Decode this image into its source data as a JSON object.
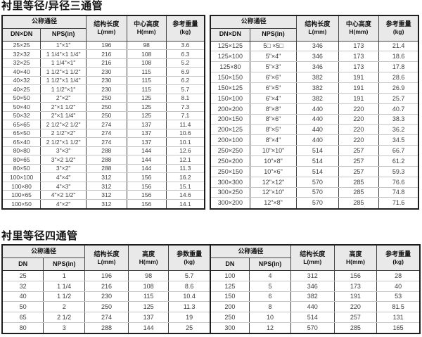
{
  "titles": {
    "tee": "衬里等径/异径三通管",
    "cross": "衬里等径四通管"
  },
  "tee_left": {
    "header": {
      "bore_group": "公称通径",
      "dn": "DN×DN",
      "nps": "NPS(in)",
      "length": "结构长度",
      "length_unit": "L(mm)",
      "height": "中心高度",
      "height_unit": "H(mm)",
      "weight": "参考重量",
      "weight_unit": "(kg)"
    },
    "rows": [
      [
        "25×25",
        "1\"×1\"",
        "196",
        "98",
        "3.6"
      ],
      [
        "32×32",
        "1 1/4\"×1 1/4\"",
        "216",
        "108",
        "6.3"
      ],
      [
        "32×25",
        "1 1/4\"×1\"",
        "216",
        "108",
        "5.2"
      ],
      [
        "40×40",
        "1 1/2\"×1 1/2\"",
        "230",
        "115",
        "6.9"
      ],
      [
        "40×32",
        "1 1/2\"×1 1/4\"",
        "230",
        "115",
        "6.2"
      ],
      [
        "40×25",
        "1 1/2\"×1\"",
        "230",
        "115",
        "5.7"
      ],
      [
        "50×50",
        "2\"×2\"",
        "250",
        "125",
        "8.1"
      ],
      [
        "50×40",
        "2\"×1 1/2\"",
        "250",
        "125",
        "7.3"
      ],
      [
        "50×32",
        "2\"×1 1/4\"",
        "250",
        "125",
        "7.1"
      ],
      [
        "65×65",
        "2 1/2\"×2 1/2\"",
        "274",
        "137",
        "11.4"
      ],
      [
        "65×50",
        "2 1/2\"×2\"",
        "274",
        "137",
        "10.6"
      ],
      [
        "65×40",
        "2 1/2\"×1 1/2\"",
        "274",
        "137",
        "10.1"
      ],
      [
        "80×80",
        "3\"×3\"",
        "288",
        "144",
        "12.6"
      ],
      [
        "80×65",
        "3\"×2 1/2\"",
        "288",
        "144",
        "12.1"
      ],
      [
        "80×50",
        "3\"×2\"",
        "288",
        "144",
        "11.3"
      ],
      [
        "100×100",
        "4\"×4\"",
        "312",
        "156",
        "16.2"
      ],
      [
        "100×80",
        "4\"×3\"",
        "312",
        "156",
        "15.1"
      ],
      [
        "100×65",
        "4\"×2 1/2\"",
        "312",
        "156",
        "14.6"
      ],
      [
        "100×50",
        "4\"×2\"",
        "312",
        "156",
        "14.1"
      ]
    ]
  },
  "tee_right": {
    "header": {
      "bore_group": "公称通径",
      "dn": "DN×DN",
      "nps": "NPS(in)",
      "length": "结构长度",
      "length_unit": "L(mm)",
      "height": "中心高度",
      "height_unit": "H(mm)",
      "weight": "参考重量",
      "weight_unit": "(kg)"
    },
    "rows": [
      [
        "125×125",
        "5□ ×5□",
        "346",
        "173",
        "21.4"
      ],
      [
        "125×100",
        "5\"×4\"",
        "346",
        "173",
        "18.6"
      ],
      [
        "125×80",
        "5\"×3\"",
        "346",
        "173",
        "17.8"
      ],
      [
        "150×150",
        "6\"×6\"",
        "382",
        "191",
        "28.6"
      ],
      [
        "150×125",
        "6\"×5\"",
        "382",
        "191",
        "26.9"
      ],
      [
        "150×100",
        "6\"×4\"",
        "382",
        "191",
        "25.7"
      ],
      [
        "200×200",
        "8\"×8\"",
        "440",
        "220",
        "40.7"
      ],
      [
        "200×150",
        "8\"×6\"",
        "440",
        "220",
        "38.3"
      ],
      [
        "200×125",
        "8\"×5\"",
        "440",
        "220",
        "36.2"
      ],
      [
        "200×100",
        "8\"×4\"",
        "440",
        "220",
        "34.5"
      ],
      [
        "250×250",
        "10\"×10\"",
        "514",
        "257",
        "66.7"
      ],
      [
        "250×200",
        "10\"×8\"",
        "514",
        "257",
        "61.2"
      ],
      [
        "250×150",
        "10\"×6\"",
        "514",
        "257",
        "59.3"
      ],
      [
        "300×300",
        "12\"×12\"",
        "570",
        "285",
        "76.6"
      ],
      [
        "300×250",
        "12\"×10\"",
        "570",
        "285",
        "74.8"
      ],
      [
        "300×200",
        "12\"×8\"",
        "570",
        "285",
        "71.6"
      ]
    ]
  },
  "cross": {
    "header_left": {
      "bore_group": "公称通径",
      "dn": "DN",
      "nps": "NPS(in)",
      "length": "结构长度",
      "length_unit": "L(mm)",
      "height": "高度",
      "height_unit": "H(mm)",
      "weight": "参数重量",
      "weight_unit": "(kg)"
    },
    "header_right": {
      "bore_group": "公称通径",
      "dn": "DN",
      "nps": "NPS(in)",
      "length": "结构长度",
      "length_unit": "L(mm)",
      "height": "高度",
      "height_unit": "H(mm)",
      "weight": "参考重量",
      "weight_unit": "(kg)"
    },
    "rows": [
      [
        "25",
        "1",
        "196",
        "98",
        "5.7",
        "100",
        "4",
        "312",
        "156",
        "28"
      ],
      [
        "32",
        "1 1/4",
        "216",
        "108",
        "8.6",
        "125",
        "5",
        "346",
        "173",
        "40"
      ],
      [
        "40",
        "1 1/2",
        "230",
        "115",
        "10.4",
        "150",
        "6",
        "382",
        "191",
        "53"
      ],
      [
        "50",
        "2",
        "250",
        "125",
        "11.3",
        "200",
        "8",
        "440",
        "220",
        "81.5"
      ],
      [
        "65",
        "2 1/2",
        "274",
        "137",
        "19",
        "250",
        "10",
        "514",
        "257",
        "131"
      ],
      [
        "80",
        "3",
        "288",
        "144",
        "25",
        "300",
        "12",
        "570",
        "285",
        "165"
      ]
    ]
  }
}
